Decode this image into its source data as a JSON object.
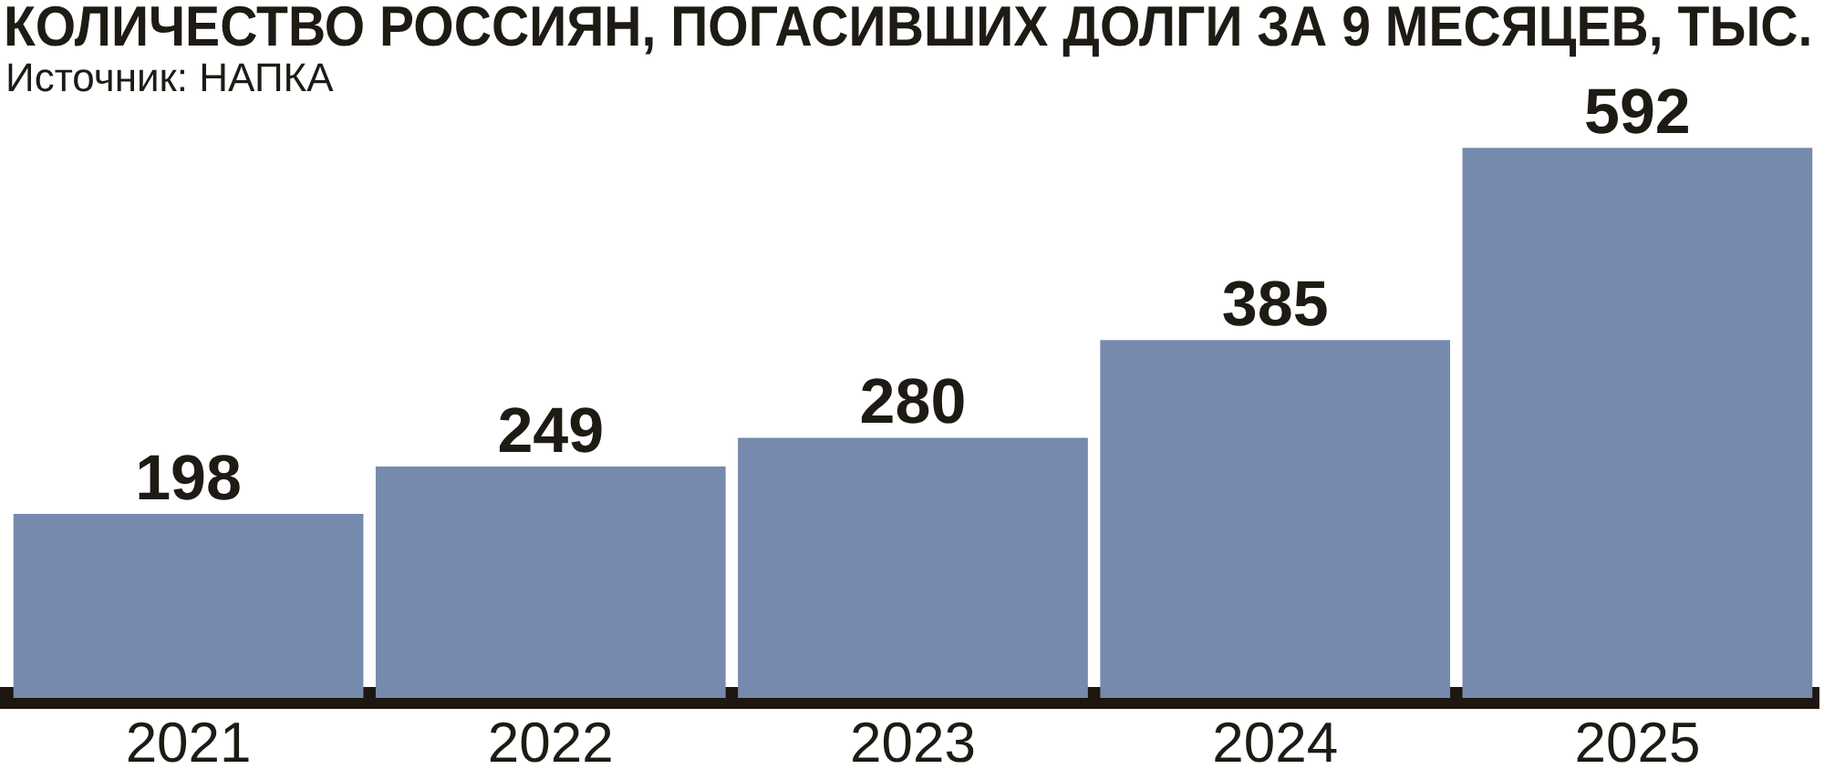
{
  "chart_data": {
    "type": "bar",
    "title": "КОЛИЧЕСТВО РОССИЯН, ПОГАСИВШИХ ДОЛГИ ЗА 9 МЕСЯЦЕВ, ТЫС.",
    "annotations": [
      "Источник: НАПКА"
    ],
    "categories": [
      "2021",
      "2022",
      "2023",
      "2024",
      "2025"
    ],
    "values": [
      198,
      249,
      280,
      385,
      592
    ],
    "color": "#768aae",
    "data_labels": true,
    "tick_labels": "x"
  }
}
